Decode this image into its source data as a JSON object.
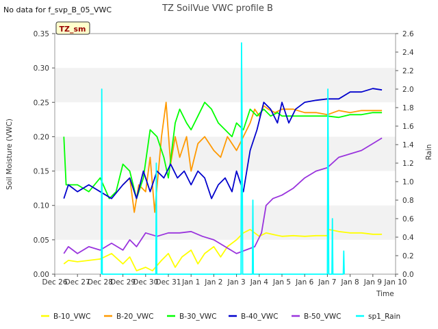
{
  "chart_data": {
    "type": "line",
    "title": "TZ SoilVue VWC profile B",
    "note": "No data for f_svp_B_05_VWC",
    "badge": "TZ_sm",
    "xlabel": "Time",
    "ylabel": "Soil Moisture (VWC)",
    "y2label": "Rain",
    "xlim": [
      0,
      15
    ],
    "ylim": [
      0,
      0.35
    ],
    "y2lim": [
      0,
      2.6
    ],
    "x_tick_labels": [
      "Dec 26",
      "Dec 27",
      "Dec 28",
      "Dec 29",
      "Dec 30",
      "Dec 31",
      "Jan 1",
      "Jan 2",
      "Jan 3",
      "Jan 4",
      "Jan 5",
      "Jan 6",
      "Jan 7",
      "Jan 8",
      "Jan 9",
      "Jan 10"
    ],
    "y_ticks": [
      "0.00",
      "0.05",
      "0.10",
      "0.15",
      "0.20",
      "0.25",
      "0.30",
      "0.35"
    ],
    "y2_ticks": [
      "0.0",
      "0.2",
      "0.4",
      "0.6",
      "0.8",
      "1.0",
      "1.2",
      "1.4",
      "1.6",
      "1.8",
      "2.0",
      "2.2",
      "2.4",
      "2.6"
    ],
    "series": [
      {
        "name": "B-10_VWC",
        "color": "#ffff00",
        "axis": "left",
        "points": [
          [
            0.4,
            0.015
          ],
          [
            0.6,
            0.02
          ],
          [
            1.0,
            0.018
          ],
          [
            1.5,
            0.02
          ],
          [
            2.0,
            0.022
          ],
          [
            2.5,
            0.03
          ],
          [
            3.0,
            0.015
          ],
          [
            3.3,
            0.025
          ],
          [
            3.6,
            0.005
          ],
          [
            4.0,
            0.01
          ],
          [
            4.3,
            0.005
          ],
          [
            4.7,
            0.02
          ],
          [
            5.0,
            0.03
          ],
          [
            5.3,
            0.01
          ],
          [
            5.6,
            0.025
          ],
          [
            6.0,
            0.035
          ],
          [
            6.3,
            0.015
          ],
          [
            6.6,
            0.03
          ],
          [
            7.0,
            0.04
          ],
          [
            7.3,
            0.025
          ],
          [
            7.6,
            0.04
          ],
          [
            8.0,
            0.05
          ],
          [
            8.3,
            0.06
          ],
          [
            8.6,
            0.065
          ],
          [
            9.0,
            0.055
          ],
          [
            9.3,
            0.06
          ],
          [
            9.7,
            0.057
          ],
          [
            10.0,
            0.055
          ],
          [
            10.5,
            0.056
          ],
          [
            11.0,
            0.055
          ],
          [
            11.5,
            0.056
          ],
          [
            12.0,
            0.056
          ],
          [
            12.05,
            0.065
          ],
          [
            12.5,
            0.062
          ],
          [
            13.0,
            0.06
          ],
          [
            13.5,
            0.06
          ],
          [
            14.0,
            0.058
          ],
          [
            14.4,
            0.058
          ]
        ]
      },
      {
        "name": "B-20_VWC",
        "color": "#ff9900",
        "axis": "left",
        "points": [
          [
            3.0,
            0.13
          ],
          [
            3.3,
            0.14
          ],
          [
            3.5,
            0.09
          ],
          [
            3.7,
            0.13
          ],
          [
            4.0,
            0.12
          ],
          [
            4.2,
            0.17
          ],
          [
            4.4,
            0.09
          ],
          [
            4.7,
            0.2
          ],
          [
            4.9,
            0.25
          ],
          [
            5.1,
            0.16
          ],
          [
            5.3,
            0.2
          ],
          [
            5.5,
            0.17
          ],
          [
            5.8,
            0.2
          ],
          [
            6.0,
            0.15
          ],
          [
            6.3,
            0.19
          ],
          [
            6.6,
            0.2
          ],
          [
            7.0,
            0.18
          ],
          [
            7.3,
            0.17
          ],
          [
            7.6,
            0.2
          ],
          [
            8.0,
            0.18
          ],
          [
            8.3,
            0.2
          ],
          [
            8.6,
            0.22
          ],
          [
            8.8,
            0.24
          ],
          [
            9.0,
            0.23
          ],
          [
            9.2,
            0.245
          ],
          [
            9.4,
            0.24
          ],
          [
            9.7,
            0.235
          ],
          [
            10.0,
            0.24
          ],
          [
            10.5,
            0.24
          ],
          [
            11.0,
            0.235
          ],
          [
            11.5,
            0.235
          ],
          [
            12.0,
            0.232
          ],
          [
            12.5,
            0.238
          ],
          [
            13.0,
            0.235
          ],
          [
            13.5,
            0.238
          ],
          [
            14.0,
            0.238
          ],
          [
            14.4,
            0.238
          ]
        ]
      },
      {
        "name": "B-30_VWC",
        "color": "#00ff00",
        "axis": "left",
        "points": [
          [
            0.4,
            0.2
          ],
          [
            0.5,
            0.13
          ],
          [
            1.0,
            0.13
          ],
          [
            1.5,
            0.12
          ],
          [
            2.0,
            0.14
          ],
          [
            2.4,
            0.11
          ],
          [
            2.7,
            0.12
          ],
          [
            3.0,
            0.16
          ],
          [
            3.3,
            0.15
          ],
          [
            3.6,
            0.11
          ],
          [
            3.9,
            0.14
          ],
          [
            4.2,
            0.21
          ],
          [
            4.5,
            0.2
          ],
          [
            4.8,
            0.17
          ],
          [
            5.0,
            0.14
          ],
          [
            5.3,
            0.22
          ],
          [
            5.5,
            0.24
          ],
          [
            5.8,
            0.22
          ],
          [
            6.0,
            0.21
          ],
          [
            6.3,
            0.23
          ],
          [
            6.6,
            0.25
          ],
          [
            6.9,
            0.24
          ],
          [
            7.2,
            0.22
          ],
          [
            7.5,
            0.21
          ],
          [
            7.8,
            0.2
          ],
          [
            8.0,
            0.22
          ],
          [
            8.3,
            0.21
          ],
          [
            8.6,
            0.24
          ],
          [
            8.9,
            0.23
          ],
          [
            9.2,
            0.24
          ],
          [
            9.5,
            0.23
          ],
          [
            9.8,
            0.235
          ],
          [
            10.0,
            0.23
          ],
          [
            10.5,
            0.23
          ],
          [
            11.0,
            0.23
          ],
          [
            11.5,
            0.23
          ],
          [
            12.0,
            0.23
          ],
          [
            12.5,
            0.228
          ],
          [
            13.0,
            0.232
          ],
          [
            13.5,
            0.232
          ],
          [
            14.0,
            0.235
          ],
          [
            14.4,
            0.235
          ]
        ]
      },
      {
        "name": "B-40_VWC",
        "color": "#0000cc",
        "axis": "left",
        "points": [
          [
            0.4,
            0.11
          ],
          [
            0.6,
            0.13
          ],
          [
            1.0,
            0.12
          ],
          [
            1.5,
            0.13
          ],
          [
            2.0,
            0.12
          ],
          [
            2.5,
            0.11
          ],
          [
            3.0,
            0.13
          ],
          [
            3.3,
            0.14
          ],
          [
            3.6,
            0.11
          ],
          [
            3.9,
            0.15
          ],
          [
            4.2,
            0.12
          ],
          [
            4.5,
            0.15
          ],
          [
            4.8,
            0.14
          ],
          [
            5.1,
            0.16
          ],
          [
            5.4,
            0.14
          ],
          [
            5.7,
            0.15
          ],
          [
            6.0,
            0.13
          ],
          [
            6.3,
            0.15
          ],
          [
            6.6,
            0.14
          ],
          [
            6.9,
            0.11
          ],
          [
            7.2,
            0.13
          ],
          [
            7.5,
            0.14
          ],
          [
            7.8,
            0.12
          ],
          [
            8.0,
            0.15
          ],
          [
            8.3,
            0.12
          ],
          [
            8.6,
            0.18
          ],
          [
            8.9,
            0.21
          ],
          [
            9.2,
            0.25
          ],
          [
            9.5,
            0.24
          ],
          [
            9.8,
            0.22
          ],
          [
            10.0,
            0.25
          ],
          [
            10.3,
            0.22
          ],
          [
            10.6,
            0.24
          ],
          [
            11.0,
            0.25
          ],
          [
            11.5,
            0.253
          ],
          [
            12.0,
            0.255
          ],
          [
            12.5,
            0.255
          ],
          [
            13.0,
            0.265
          ],
          [
            13.5,
            0.265
          ],
          [
            14.0,
            0.27
          ],
          [
            14.4,
            0.268
          ]
        ]
      },
      {
        "name": "B-50_VWC",
        "color": "#9933dd",
        "axis": "left",
        "points": [
          [
            0.4,
            0.03
          ],
          [
            0.6,
            0.04
          ],
          [
            1.0,
            0.03
          ],
          [
            1.5,
            0.04
          ],
          [
            2.0,
            0.035
          ],
          [
            2.5,
            0.045
          ],
          [
            3.0,
            0.035
          ],
          [
            3.3,
            0.05
          ],
          [
            3.6,
            0.04
          ],
          [
            4.0,
            0.06
          ],
          [
            4.5,
            0.055
          ],
          [
            5.0,
            0.06
          ],
          [
            5.5,
            0.06
          ],
          [
            6.0,
            0.062
          ],
          [
            6.5,
            0.055
          ],
          [
            7.0,
            0.05
          ],
          [
            7.5,
            0.04
          ],
          [
            8.0,
            0.03
          ],
          [
            8.4,
            0.035
          ],
          [
            8.8,
            0.04
          ],
          [
            9.1,
            0.06
          ],
          [
            9.3,
            0.1
          ],
          [
            9.6,
            0.11
          ],
          [
            10.0,
            0.115
          ],
          [
            10.5,
            0.125
          ],
          [
            11.0,
            0.14
          ],
          [
            11.5,
            0.15
          ],
          [
            12.0,
            0.155
          ],
          [
            12.5,
            0.17
          ],
          [
            13.0,
            0.175
          ],
          [
            13.5,
            0.18
          ],
          [
            14.0,
            0.19
          ],
          [
            14.4,
            0.198
          ]
        ]
      },
      {
        "name": "sp1_Rain",
        "color": "#00ffff",
        "axis": "right",
        "points": [
          [
            2.05,
            0.0
          ],
          [
            2.07,
            2.0
          ],
          [
            2.09,
            0.0
          ],
          [
            4.45,
            0.0
          ],
          [
            4.47,
            1.2
          ],
          [
            4.49,
            0.0
          ],
          [
            8.2,
            0.0
          ],
          [
            8.22,
            2.5
          ],
          [
            8.25,
            1.5
          ],
          [
            8.27,
            0.0
          ],
          [
            8.7,
            0.0
          ],
          [
            8.72,
            0.8
          ],
          [
            8.74,
            0.0
          ],
          [
            12.0,
            0.0
          ],
          [
            12.02,
            2.0
          ],
          [
            12.04,
            1.2
          ],
          [
            12.06,
            0.0
          ],
          [
            12.2,
            0.0
          ],
          [
            12.22,
            0.6
          ],
          [
            12.24,
            0.0
          ],
          [
            12.7,
            0.0
          ],
          [
            12.72,
            0.25
          ],
          [
            12.74,
            0.0
          ]
        ]
      }
    ],
    "legend": {
      "position": "bottom",
      "labels": [
        "B-10_VWC",
        "B-20_VWC",
        "B-30_VWC",
        "B-40_VWC",
        "B-50_VWC",
        "sp1_Rain"
      ]
    }
  }
}
